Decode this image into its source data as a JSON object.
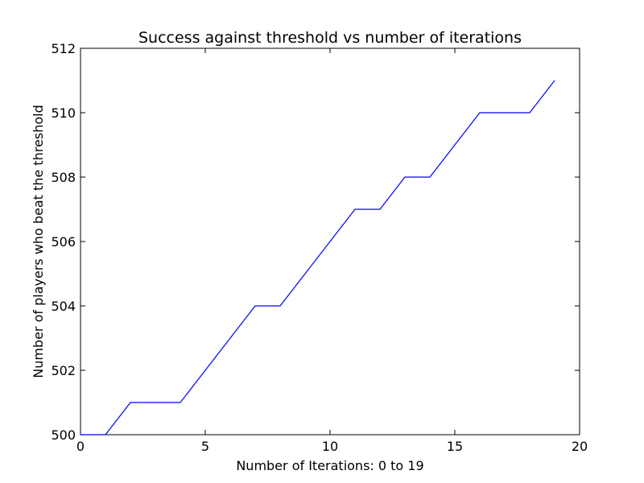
{
  "chart_data": {
    "type": "line",
    "title": "Success against threshold vs number of iterations",
    "xlabel": "Number of Iterations: 0 to 19",
    "ylabel": "Number of players who beat the threshold",
    "xlim": [
      0,
      20
    ],
    "ylim": [
      500,
      512
    ],
    "xticks": [
      0,
      5,
      10,
      15,
      20
    ],
    "yticks": [
      500,
      502,
      504,
      506,
      508,
      510,
      512
    ],
    "grid": false,
    "series": [
      {
        "color": "#0000ff",
        "x": [
          0,
          1,
          2,
          3,
          4,
          5,
          6,
          7,
          8,
          9,
          10,
          11,
          12,
          13,
          14,
          15,
          16,
          17,
          18,
          19
        ],
        "y": [
          500,
          500,
          501,
          501,
          501,
          502,
          503,
          504,
          504,
          505,
          506,
          507,
          507,
          508,
          508,
          509,
          510,
          510,
          510,
          511
        ]
      }
    ]
  }
}
